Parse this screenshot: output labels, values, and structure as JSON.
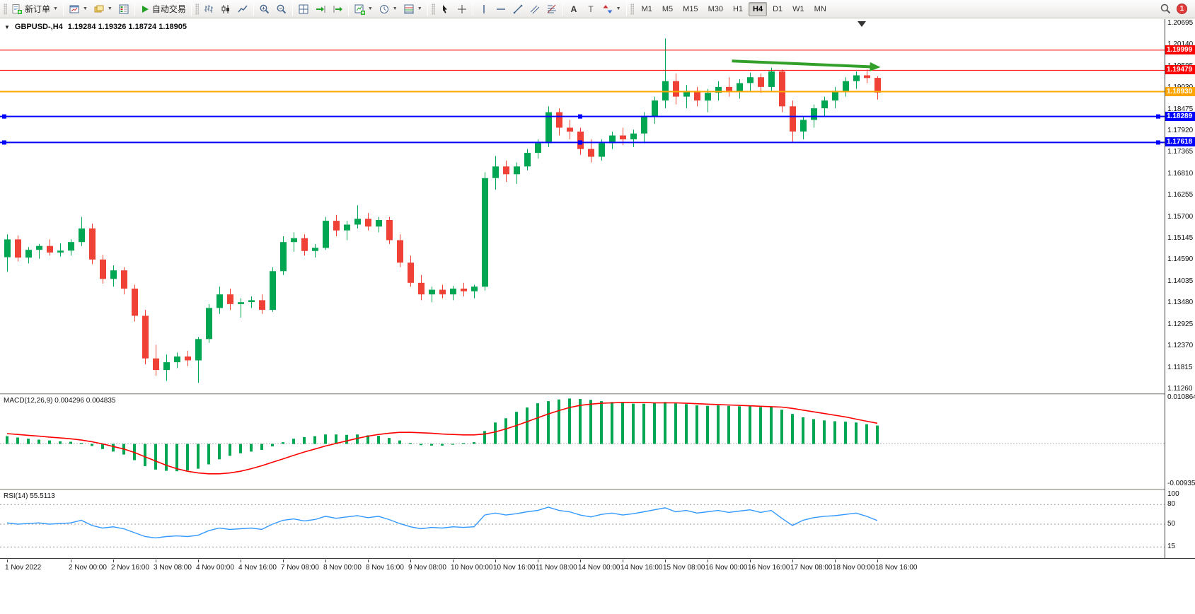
{
  "toolbar": {
    "new_order": "新订单",
    "autotrading": "自动交易",
    "timeframes": [
      "M1",
      "M5",
      "M15",
      "M30",
      "H1",
      "H4",
      "D1",
      "W1",
      "MN"
    ],
    "active_timeframe": "H4",
    "notification_count": "1"
  },
  "icons": [
    "new-order-icon",
    "new-chart-icon",
    "profiles-icon",
    "market-watch-icon",
    "autotrading-play-icon",
    "bar-chart-type-icon",
    "candlestick-type-icon",
    "line-chart-type-icon",
    "zoom-in-icon",
    "zoom-out-icon",
    "tile-windows-icon",
    "auto-scroll-icon",
    "chart-shift-icon",
    "indicators-icon",
    "periods-clock-icon",
    "templates-icon",
    "cursor-icon",
    "crosshair-icon",
    "vertical-line-icon",
    "horizontal-line-icon",
    "trendline-icon",
    "equidistant-channel-icon",
    "fibonacci-icon",
    "text-icon",
    "label-icon",
    "arrows-icon",
    "search-icon",
    "dropdown-arrow-icon",
    "one-click-trading-icon",
    "chart-shift-marker-icon"
  ],
  "chart_data": {
    "type": "candlestick",
    "symbol": "GBPUSD-,H4",
    "ohlc_display": "1.19284 1.19326 1.18724 1.18905",
    "ohlc": {
      "open": 1.19284,
      "high": 1.19326,
      "low": 1.18724,
      "close": 1.18905
    },
    "colors": {
      "bull": "#00a651",
      "bear": "#ef4136"
    },
    "price_axis": {
      "min": 1.1115,
      "max": 1.208,
      "labels": [
        "1.20695",
        "1.20140",
        "1.19585",
        "1.19030",
        "1.18475",
        "1.17920",
        "1.17365",
        "1.16810",
        "1.16255",
        "1.15700",
        "1.15145",
        "1.14590",
        "1.14035",
        "1.13480",
        "1.12925",
        "1.12370",
        "1.11815",
        "1.11260"
      ]
    },
    "hlines": [
      {
        "price": 1.19999,
        "badge": "1.19999",
        "color": "#ff0000",
        "width": 1,
        "handles": false
      },
      {
        "price": 1.19479,
        "badge": "1.19479",
        "color": "#ff0000",
        "width": 1,
        "handles": false
      },
      {
        "price": 1.1893,
        "badge": "1.18930",
        "color": "#ffa500",
        "width": 2,
        "handles": false
      },
      {
        "price": 1.18289,
        "badge": "1.18289",
        "color": "#0000ff",
        "width": 2,
        "handles": true
      },
      {
        "price": 1.17618,
        "badge": "1.17618",
        "color": "#0000ff",
        "width": 2,
        "handles": true
      }
    ],
    "trend_arrow": {
      "i1": 68.3,
      "p1": 1.1972,
      "i2": 82.3,
      "p2": 1.1956,
      "color": "#33a02c"
    },
    "candles": [
      [
        1.1466,
        1.1525,
        1.1428,
        1.1512
      ],
      [
        1.1512,
        1.1522,
        1.1455,
        1.1465
      ],
      [
        1.1465,
        1.1492,
        1.145,
        1.1485
      ],
      [
        1.1485,
        1.15,
        1.1462,
        1.1495
      ],
      [
        1.1495,
        1.1512,
        1.147,
        1.1478
      ],
      [
        1.1478,
        1.1502,
        1.1468,
        1.1483
      ],
      [
        1.1483,
        1.1512,
        1.147,
        1.1505
      ],
      [
        1.1505,
        1.157,
        1.1495,
        1.154
      ],
      [
        1.154,
        1.1552,
        1.1448,
        1.146
      ],
      [
        1.146,
        1.1472,
        1.1398,
        1.141
      ],
      [
        1.141,
        1.1445,
        1.139,
        1.1432
      ],
      [
        1.1432,
        1.144,
        1.137,
        1.1385
      ],
      [
        1.1385,
        1.1395,
        1.13,
        1.1315
      ],
      [
        1.1315,
        1.133,
        1.119,
        1.1205
      ],
      [
        1.1205,
        1.124,
        1.116,
        1.1175
      ],
      [
        1.1175,
        1.1215,
        1.1147,
        1.1195
      ],
      [
        1.1195,
        1.122,
        1.118,
        1.121
      ],
      [
        1.121,
        1.1225,
        1.1185,
        1.12
      ],
      [
        1.12,
        1.126,
        1.1142,
        1.1255
      ],
      [
        1.1255,
        1.1345,
        1.1245,
        1.1335
      ],
      [
        1.1335,
        1.139,
        1.132,
        1.137
      ],
      [
        1.137,
        1.1385,
        1.133,
        1.1345
      ],
      [
        1.1345,
        1.136,
        1.131,
        1.135
      ],
      [
        1.135,
        1.1365,
        1.1335,
        1.1355
      ],
      [
        1.1355,
        1.137,
        1.132,
        1.133
      ],
      [
        1.133,
        1.144,
        1.1325,
        1.143
      ],
      [
        1.143,
        1.152,
        1.142,
        1.1505
      ],
      [
        1.1505,
        1.153,
        1.148,
        1.1515
      ],
      [
        1.1515,
        1.1525,
        1.147,
        1.1482
      ],
      [
        1.1482,
        1.15,
        1.1465,
        1.149
      ],
      [
        1.149,
        1.157,
        1.1485,
        1.156
      ],
      [
        1.156,
        1.1575,
        1.152,
        1.1535
      ],
      [
        1.1535,
        1.156,
        1.151,
        1.155
      ],
      [
        1.155,
        1.16,
        1.154,
        1.1565
      ],
      [
        1.1565,
        1.158,
        1.1535,
        1.1545
      ],
      [
        1.1545,
        1.157,
        1.153,
        1.1562
      ],
      [
        1.1562,
        1.157,
        1.15,
        1.151
      ],
      [
        1.151,
        1.1525,
        1.144,
        1.1452
      ],
      [
        1.1452,
        1.147,
        1.139,
        1.14
      ],
      [
        1.14,
        1.142,
        1.1355,
        1.137
      ],
      [
        1.137,
        1.139,
        1.135,
        1.1382
      ],
      [
        1.1382,
        1.1395,
        1.136,
        1.137
      ],
      [
        1.137,
        1.1392,
        1.1355,
        1.1385
      ],
      [
        1.1385,
        1.14,
        1.1365,
        1.1378
      ],
      [
        1.1378,
        1.1395,
        1.136,
        1.139
      ],
      [
        1.139,
        1.1685,
        1.138,
        1.167
      ],
      [
        1.167,
        1.1727,
        1.164,
        1.17
      ],
      [
        1.17,
        1.1715,
        1.166,
        1.168
      ],
      [
        1.168,
        1.171,
        1.1655,
        1.17
      ],
      [
        1.17,
        1.1745,
        1.169,
        1.1735
      ],
      [
        1.1735,
        1.177,
        1.172,
        1.176
      ],
      [
        1.176,
        1.1855,
        1.175,
        1.184
      ],
      [
        1.184,
        1.185,
        1.178,
        1.18
      ],
      [
        1.18,
        1.182,
        1.177,
        1.179
      ],
      [
        1.179,
        1.18,
        1.173,
        1.1745
      ],
      [
        1.1745,
        1.177,
        1.171,
        1.1725
      ],
      [
        1.1725,
        1.177,
        1.1715,
        1.176
      ],
      [
        1.176,
        1.179,
        1.1745,
        1.178
      ],
      [
        1.178,
        1.18,
        1.1755,
        1.177
      ],
      [
        1.177,
        1.1795,
        1.175,
        1.1785
      ],
      [
        1.1785,
        1.184,
        1.176,
        1.183
      ],
      [
        1.183,
        1.188,
        1.181,
        1.187
      ],
      [
        1.187,
        1.203,
        1.185,
        1.192
      ],
      [
        1.192,
        1.194,
        1.186,
        1.188
      ],
      [
        1.188,
        1.191,
        1.185,
        1.1895
      ],
      [
        1.1895,
        1.1905,
        1.1855,
        1.187
      ],
      [
        1.187,
        1.19,
        1.184,
        1.189
      ],
      [
        1.189,
        1.192,
        1.187,
        1.1905
      ],
      [
        1.1905,
        1.193,
        1.188,
        1.1895
      ],
      [
        1.1895,
        1.1925,
        1.1875,
        1.1915
      ],
      [
        1.1915,
        1.1942,
        1.1895,
        1.193
      ],
      [
        1.193,
        1.194,
        1.189,
        1.1905
      ],
      [
        1.1905,
        1.1955,
        1.1895,
        1.1945
      ],
      [
        1.1945,
        1.195,
        1.184,
        1.1855
      ],
      [
        1.1855,
        1.187,
        1.1763,
        1.179
      ],
      [
        1.179,
        1.183,
        1.177,
        1.182
      ],
      [
        1.182,
        1.186,
        1.18,
        1.185
      ],
      [
        1.185,
        1.188,
        1.183,
        1.187
      ],
      [
        1.187,
        1.1905,
        1.185,
        1.1895
      ],
      [
        1.1895,
        1.193,
        1.188,
        1.192
      ],
      [
        1.192,
        1.1945,
        1.19,
        1.1935
      ],
      [
        1.1935,
        1.195,
        1.1915,
        1.1928
      ],
      [
        1.19284,
        1.19326,
        1.18724,
        1.18905
      ]
    ],
    "time_labels": [
      [
        0,
        "1 Nov 2022"
      ],
      [
        6,
        "2 Nov 00:00"
      ],
      [
        10,
        "2 Nov 16:00"
      ],
      [
        14,
        "3 Nov 08:00"
      ],
      [
        18,
        "4 Nov 00:00"
      ],
      [
        22,
        "4 Nov 16:00"
      ],
      [
        26,
        "7 Nov 08:00"
      ],
      [
        30,
        "8 Nov 00:00"
      ],
      [
        34,
        "8 Nov 16:00"
      ],
      [
        38,
        "9 Nov 08:00"
      ],
      [
        42,
        "10 Nov 00:00"
      ],
      [
        46,
        "10 Nov 16:00"
      ],
      [
        50,
        "11 Nov 08:00"
      ],
      [
        54,
        "14 Nov 00:00"
      ],
      [
        58,
        "14 Nov 16:00"
      ],
      [
        62,
        "15 Nov 08:00"
      ],
      [
        66,
        "16 Nov 00:00"
      ],
      [
        70,
        "16 Nov 16:00"
      ],
      [
        74,
        "17 Nov 08:00"
      ],
      [
        78,
        "18 Nov 00:00"
      ],
      [
        82,
        "18 Nov 16:00"
      ]
    ],
    "macd": {
      "display": "MACD(12,26,9) 0.004296 0.004835",
      "name": "MACD(12,26,9)",
      "main_value": 0.004296,
      "signal_value": 0.004835,
      "hist_color": "#00a651",
      "signal_color": "#ff0000",
      "scale_min": -0.0105,
      "scale_max": 0.0115,
      "axis_labels": [
        {
          "v": 0.010864,
          "text": "0.010864"
        },
        {
          "v": -0.009358,
          "text": "-0.009358"
        }
      ],
      "histogram": [
        0.0018,
        0.0015,
        0.0012,
        0.001,
        0.0008,
        0.0006,
        0.0005,
        0.0002,
        -0.0005,
        -0.0012,
        -0.0018,
        -0.0025,
        -0.0038,
        -0.0052,
        -0.006,
        -0.0063,
        -0.0064,
        -0.0062,
        -0.0058,
        -0.0048,
        -0.0036,
        -0.0028,
        -0.0022,
        -0.0018,
        -0.0014,
        -0.0006,
        0.0004,
        0.0012,
        0.0016,
        0.0018,
        0.0022,
        0.0022,
        0.0021,
        0.0022,
        0.002,
        0.0019,
        0.0014,
        0.0008,
        0.0002,
        -0.0003,
        -0.0004,
        -0.0004,
        -0.0002,
        0.0002,
        0.0004,
        0.003,
        0.005,
        0.006,
        0.0075,
        0.0085,
        0.0095,
        0.01,
        0.0104,
        0.0106,
        0.0105,
        0.0103,
        0.01,
        0.0098,
        0.0096,
        0.0094,
        0.0094,
        0.0096,
        0.0098,
        0.0095,
        0.0093,
        0.009,
        0.0089,
        0.009,
        0.0089,
        0.0088,
        0.0088,
        0.0086,
        0.0087,
        0.008,
        0.007,
        0.0062,
        0.0058,
        0.0055,
        0.0053,
        0.0052,
        0.005,
        0.0046,
        0.004296
      ],
      "signal": [
        0.0024,
        0.0022,
        0.002,
        0.0018,
        0.0016,
        0.0014,
        0.0012,
        0.0009,
        0.0005,
        0.0,
        -0.0006,
        -0.0012,
        -0.002,
        -0.003,
        -0.004,
        -0.005,
        -0.0058,
        -0.0064,
        -0.0068,
        -0.007,
        -0.007,
        -0.0068,
        -0.0064,
        -0.0058,
        -0.0051,
        -0.0043,
        -0.0035,
        -0.0027,
        -0.0019,
        -0.0012,
        -0.0005,
        0.0001,
        0.0007,
        0.0013,
        0.0018,
        0.0022,
        0.0025,
        0.0027,
        0.0027,
        0.0026,
        0.0025,
        0.0023,
        0.0022,
        0.0021,
        0.0021,
        0.0023,
        0.0028,
        0.0035,
        0.0043,
        0.0052,
        0.0061,
        0.007,
        0.0078,
        0.0085,
        0.009,
        0.0093,
        0.0095,
        0.0096,
        0.0097,
        0.0097,
        0.0097,
        0.0096,
        0.0096,
        0.0096,
        0.0095,
        0.0094,
        0.0093,
        0.0092,
        0.0091,
        0.009,
        0.0089,
        0.0088,
        0.0087,
        0.0086,
        0.0083,
        0.0079,
        0.0075,
        0.0071,
        0.0067,
        0.0063,
        0.0058,
        0.0053,
        0.004835
      ]
    },
    "rsi": {
      "display": "RSI(14) 55.5113",
      "name": "RSI(14)",
      "value": 55.5113,
      "color": "#3399ff",
      "levels": [
        80,
        50,
        15
      ],
      "axis_labels": [
        {
          "v": 100,
          "text": "100"
        },
        {
          "v": 80,
          "text": "80"
        },
        {
          "v": 50,
          "text": "50"
        },
        {
          "v": 15,
          "text": "15"
        }
      ],
      "series": [
        52,
        50,
        51,
        52,
        50,
        51,
        52,
        56,
        48,
        44,
        46,
        43,
        37,
        31,
        29,
        31,
        32,
        31,
        33,
        40,
        44,
        42,
        43,
        44,
        42,
        50,
        56,
        58,
        55,
        57,
        62,
        59,
        61,
        63,
        60,
        62,
        57,
        51,
        46,
        43,
        45,
        44,
        46,
        45,
        46,
        64,
        67,
        64,
        66,
        69,
        71,
        76,
        71,
        69,
        64,
        61,
        65,
        67,
        64,
        66,
        69,
        72,
        75,
        69,
        71,
        67,
        69,
        71,
        68,
        70,
        72,
        68,
        71,
        59,
        48,
        56,
        60,
        62,
        63,
        65,
        67,
        62,
        55.5113
      ]
    }
  }
}
